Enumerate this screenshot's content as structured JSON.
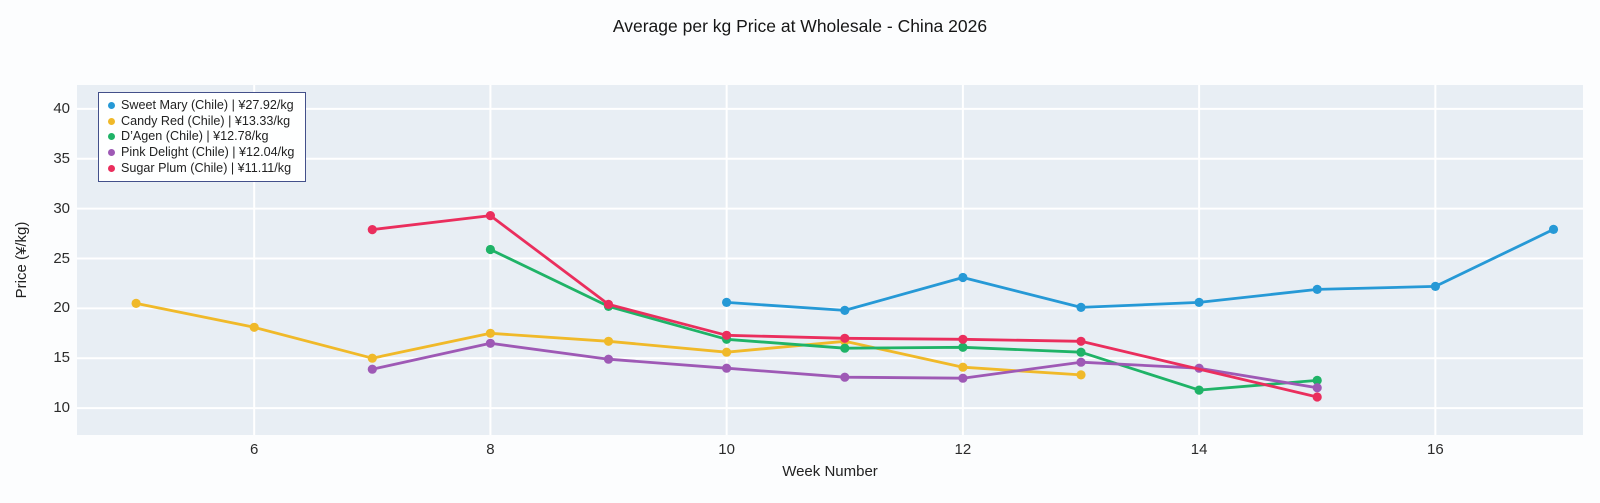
{
  "chart_data": {
    "type": "line",
    "title": "Average per kg Price at Wholesale - China 2026",
    "xlabel": "Week Number",
    "ylabel": "Price (¥/kg)",
    "x_range": [
      4.5,
      17.25
    ],
    "y_range": [
      7.3,
      42.4
    ],
    "xticks": [
      6,
      8,
      10,
      12,
      14,
      16
    ],
    "yticks": [
      10,
      15,
      20,
      25,
      30,
      35,
      40
    ],
    "grid": true,
    "legend_position": "top-left",
    "series": [
      {
        "id": "sweet-mary",
        "name": "Sweet Mary (Chile) | ¥27.92/kg",
        "color": "#2699d6",
        "x": [
          10,
          11,
          12,
          13,
          14,
          15,
          16,
          17
        ],
        "y": [
          20.6,
          19.8,
          23.1,
          20.1,
          20.6,
          21.9,
          22.2,
          27.92
        ]
      },
      {
        "id": "candy-red",
        "name": "Candy Red (Chile) | ¥13.33/kg",
        "color": "#f0b929",
        "x": [
          5,
          6,
          7,
          8,
          9,
          10,
          11,
          12,
          13
        ],
        "y": [
          20.5,
          18.1,
          15.0,
          17.5,
          16.7,
          15.6,
          16.7,
          14.1,
          13.33
        ]
      },
      {
        "id": "dagen",
        "name": "D’Agen (Chile) | ¥12.78/kg",
        "color": "#1fb367",
        "x": [
          8,
          9,
          10,
          11,
          12,
          13,
          14,
          15
        ],
        "y": [
          25.9,
          20.2,
          16.9,
          16.0,
          16.1,
          15.6,
          11.8,
          12.78
        ]
      },
      {
        "id": "pink-delight",
        "name": "Pink Delight (Chile) | ¥12.04/kg",
        "color": "#9e59b5",
        "x": [
          7,
          8,
          9,
          10,
          11,
          12,
          13,
          14,
          15
        ],
        "y": [
          13.9,
          16.5,
          14.9,
          14.0,
          13.1,
          13.0,
          14.6,
          14.0,
          12.04
        ]
      },
      {
        "id": "sugar-plum",
        "name": "Sugar Plum (Chile) | ¥11.11/kg",
        "color": "#ea2e5d",
        "x": [
          7,
          8,
          9,
          10,
          11,
          12,
          13,
          15
        ],
        "y": [
          27.9,
          29.3,
          20.4,
          17.3,
          17.0,
          16.9,
          16.7,
          11.11
        ]
      }
    ]
  },
  "colors": {
    "plot_background": "#e8eef4",
    "grid": "#ffffff",
    "legend_border": "#43508a",
    "text": "#2b2b2b"
  }
}
